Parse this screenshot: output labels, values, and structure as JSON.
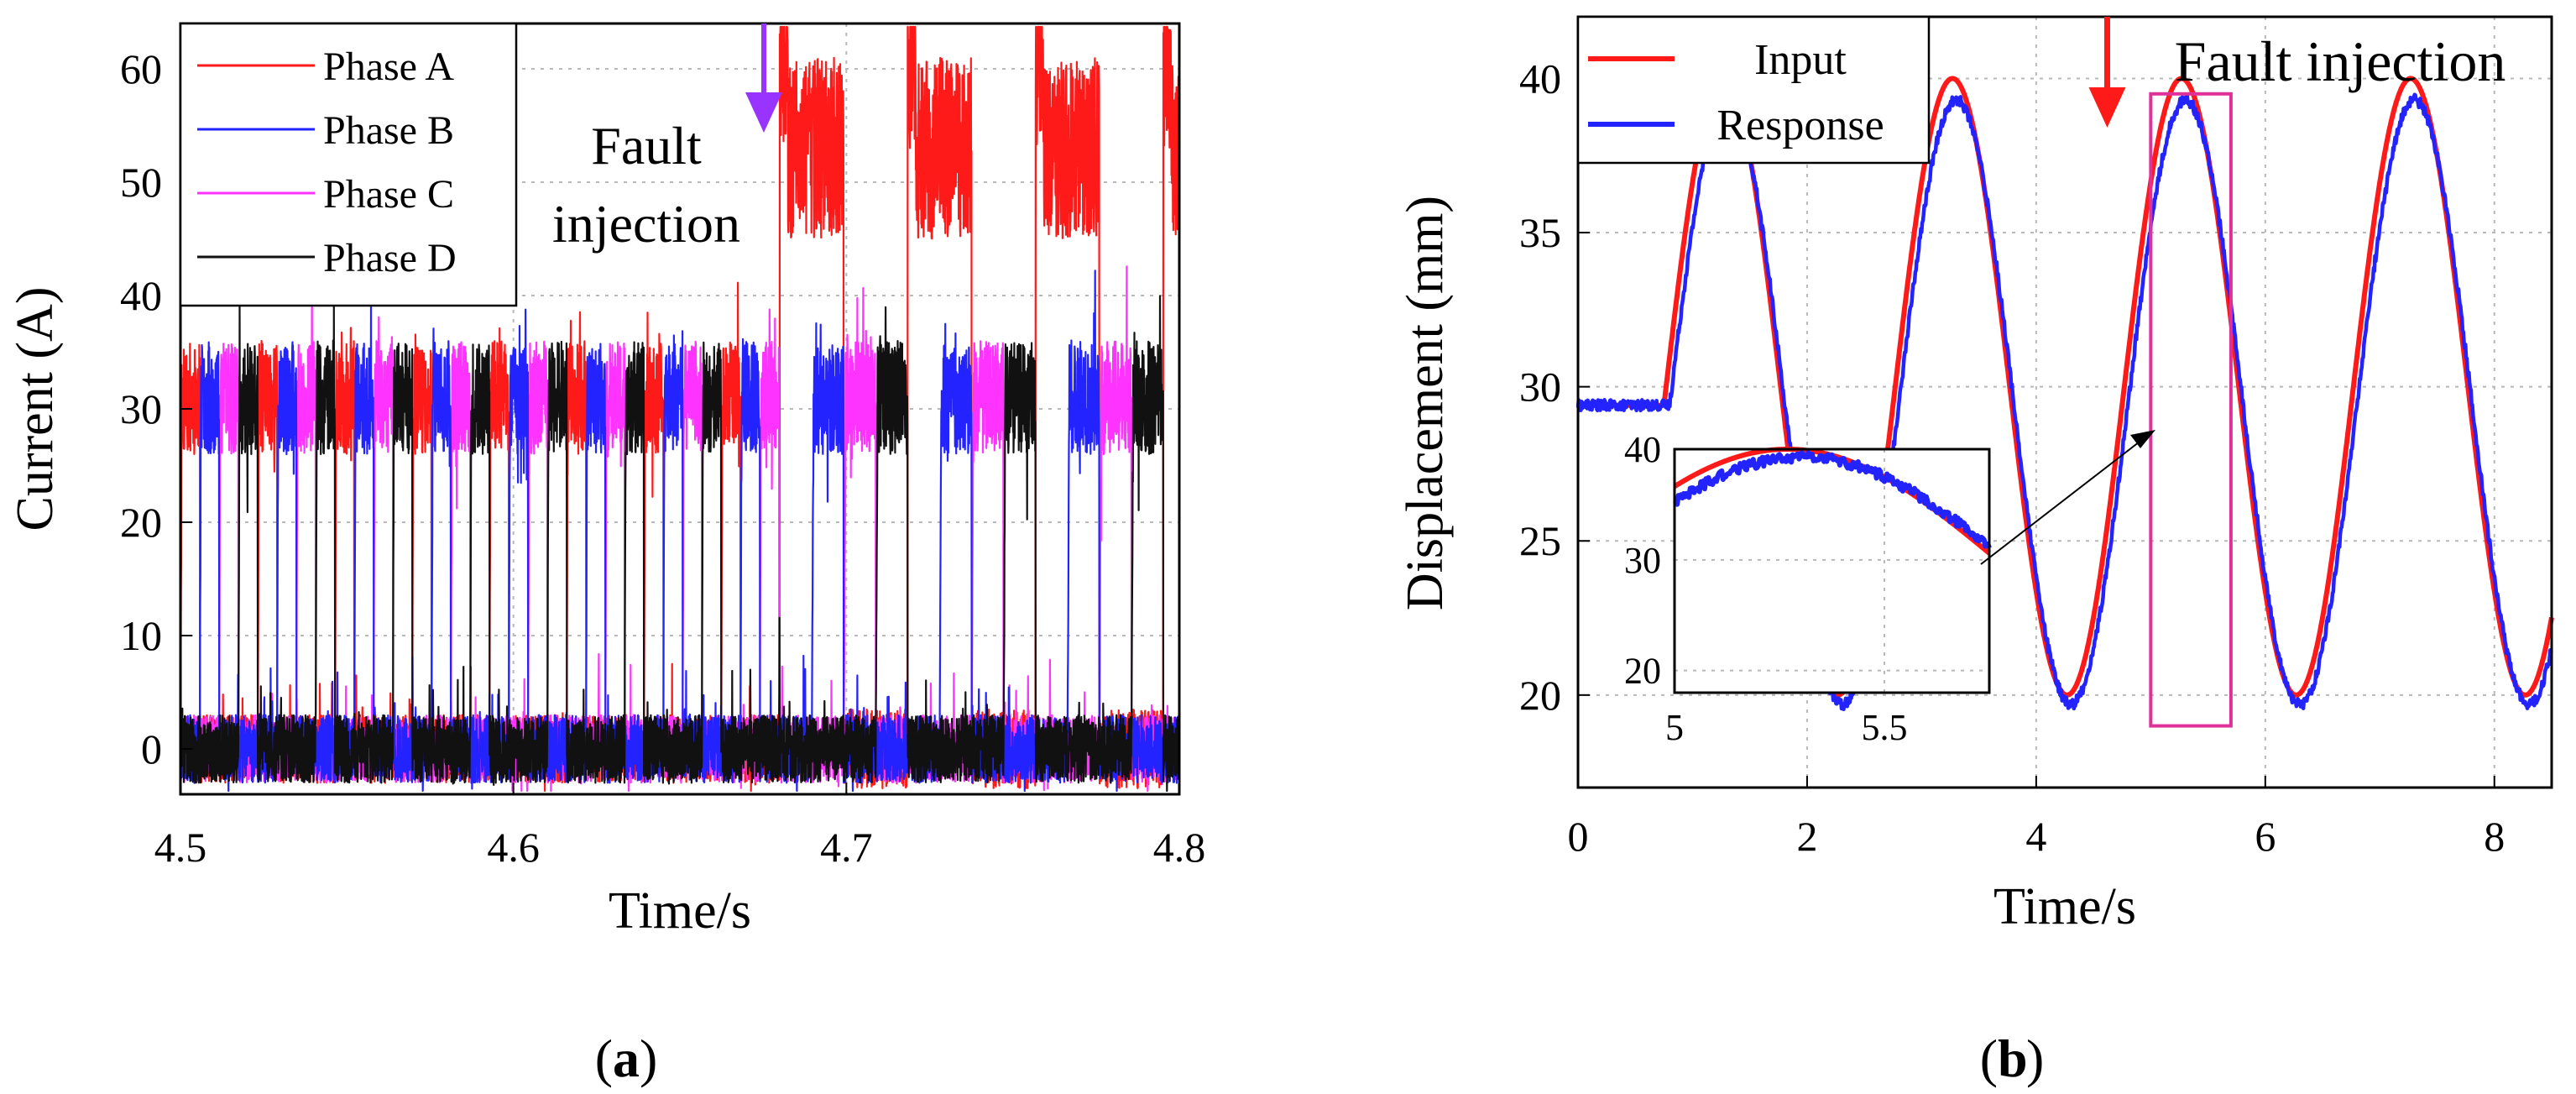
{
  "chart_data": [
    {
      "panel": "a",
      "type": "line",
      "xlabel": "Time/s",
      "ylabel": "Current (A)",
      "xlim": [
        4.5,
        4.8
      ],
      "ylim": [
        -4,
        64
      ],
      "xticks": [
        4.5,
        4.6,
        4.7,
        4.8
      ],
      "xtick_labels": [
        "4.5",
        "4.6",
        "4.7",
        "4.8"
      ],
      "yticks": [
        0,
        10,
        20,
        30,
        40,
        50,
        60
      ],
      "ytick_labels": [
        "0",
        "10",
        "20",
        "30",
        "40",
        "50",
        "60"
      ],
      "grid": true,
      "legend_position": "top-left",
      "series": [
        {
          "name": "Phase A",
          "color": "#ff1a1a",
          "pulse_start": 4.5,
          "low_value": 0,
          "high_value": 31,
          "high_value_after_fault": 53
        },
        {
          "name": "Phase B",
          "color": "#2323ff",
          "pulse_start": 4.5,
          "low_value": 0,
          "high_value": 31
        },
        {
          "name": "Phase C",
          "color": "#ff33ff",
          "pulse_start": 4.5,
          "low_value": 0,
          "high_value": 31
        },
        {
          "name": "Phase D",
          "color": "#111111",
          "pulse_start": 4.5,
          "low_value": 0,
          "high_value": 31
        }
      ],
      "fault_time": 4.68,
      "annotation": {
        "line1": "Fault",
        "line2": "injection",
        "arrow_color": "#9933ff"
      }
    },
    {
      "panel": "b",
      "type": "line",
      "xlabel": "Time/s",
      "ylabel": "Displacement (mm)",
      "xlim": [
        0,
        8.5
      ],
      "ylim": [
        17,
        42
      ],
      "xticks": [
        0,
        2,
        4,
        6,
        8
      ],
      "xtick_labels": [
        "0",
        "2",
        "4",
        "6",
        "8"
      ],
      "yticks": [
        20,
        25,
        30,
        35,
        40
      ],
      "ytick_labels": [
        "20",
        "25",
        "30",
        "35",
        "40"
      ],
      "grid": true,
      "legend_position": "top-left",
      "series": [
        {
          "name": "Input",
          "color": "#ff1a1a",
          "offset": 30,
          "amplitude": 10,
          "period": 2,
          "start_time": 0.75
        },
        {
          "name": "Response",
          "color": "#2323ff",
          "offset": 29.5,
          "amplitude": 9.8,
          "period": 2,
          "start_time": 0.75,
          "lag": 0.05
        }
      ],
      "fault_time": 4.62,
      "annotation": {
        "text": "Fault injection",
        "arrow_color": "#ff1a1a"
      },
      "zoom_box": {
        "x": [
          5.0,
          5.7
        ],
        "y": [
          19,
          39.5
        ],
        "color": "#e0309a"
      },
      "inset": {
        "xlim": [
          5.0,
          5.75
        ],
        "ylim": [
          18,
          40
        ],
        "xticks": [
          5,
          5.5
        ],
        "xtick_labels": [
          "5",
          "5.5"
        ],
        "yticks": [
          20,
          30,
          40
        ],
        "ytick_labels": [
          "20",
          "30",
          "40"
        ]
      }
    }
  ],
  "captions": {
    "a": {
      "open": "(",
      "letter": "a",
      "close": ")"
    },
    "b": {
      "open": "(",
      "letter": "b",
      "close": ")"
    }
  }
}
